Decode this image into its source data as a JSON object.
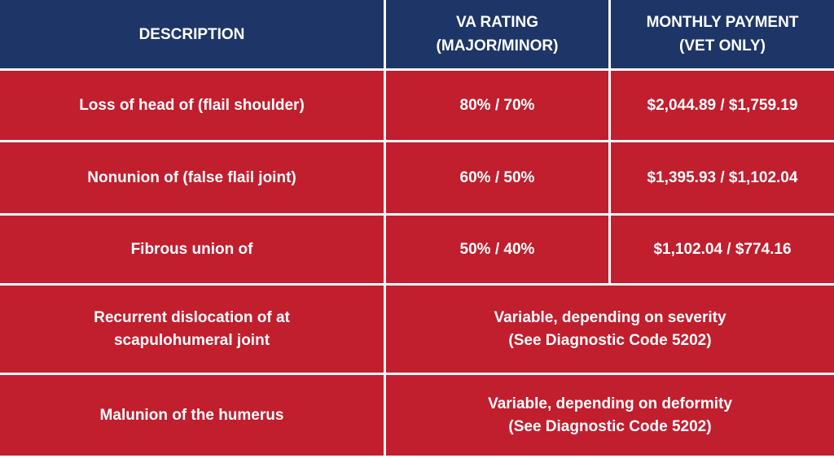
{
  "header": {
    "description": "DESCRIPTION",
    "va_rating_line1": "VA RATING",
    "va_rating_line2": "(MAJOR/MINOR)",
    "monthly_line1": "MONTHLY PAYMENT",
    "monthly_line2": "(VET ONLY)"
  },
  "rows": [
    {
      "description": "Loss of head of (flail shoulder)",
      "rating": "80% / 70%",
      "payment": "$2,044.89 / $1,759.19"
    },
    {
      "description": "Nonunion of (false flail joint)",
      "rating": "60% / 50%",
      "payment": "$1,395.93 / $1,102.04"
    },
    {
      "description": "Fibrous union of",
      "rating": "50% / 40%",
      "payment": "$1,102.04 / $774.16"
    },
    {
      "description_line1": "Recurrent dislocation of at",
      "description_line2": "scapulohumeral joint",
      "merged_line1": "Variable, depending on severity",
      "merged_line2": "(See Diagnostic Code 5202)"
    },
    {
      "description": "Malunion of the humerus",
      "merged_line1": "Variable, depending on deformity",
      "merged_line2": "(See Diagnostic Code 5202)"
    }
  ],
  "colors": {
    "header_bg": "#1d3667",
    "row_bg": "#c11e2e",
    "text": "#ffffff",
    "grid": "#ffffff"
  }
}
